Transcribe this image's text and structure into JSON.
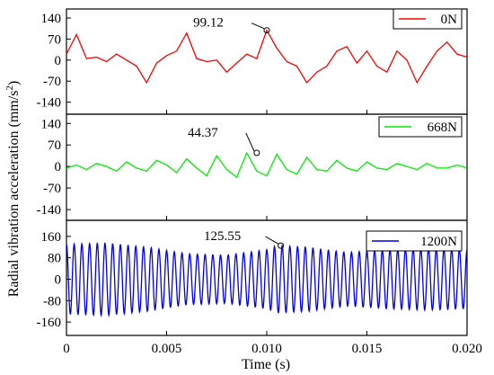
{
  "chart_data": [
    {
      "type": "line",
      "panel": "top",
      "series": [
        {
          "name": "0N",
          "color": "#ff0000"
        }
      ],
      "x": [
        0.0,
        0.0005,
        0.001,
        0.0015,
        0.002,
        0.0025,
        0.003,
        0.0035,
        0.004,
        0.0045,
        0.005,
        0.0055,
        0.006,
        0.0065,
        0.007,
        0.0075,
        0.008,
        0.0085,
        0.009,
        0.0095,
        0.01,
        0.0105,
        0.011,
        0.0115,
        0.012,
        0.0125,
        0.013,
        0.0135,
        0.014,
        0.0145,
        0.015,
        0.0155,
        0.016,
        0.0165,
        0.017,
        0.0175,
        0.018,
        0.0185,
        0.019,
        0.0195,
        0.02
      ],
      "values": [
        20,
        85,
        5,
        10,
        -5,
        20,
        0,
        -20,
        -75,
        -10,
        15,
        30,
        90,
        5,
        -5,
        0,
        -40,
        -10,
        20,
        5,
        99,
        40,
        -5,
        -20,
        -75,
        -40,
        -20,
        30,
        45,
        -10,
        30,
        -20,
        -40,
        30,
        0,
        -75,
        -20,
        30,
        60,
        20,
        10
      ],
      "ylim": [
        -180,
        170
      ],
      "yticks": [
        "140",
        "70",
        "0",
        "-70",
        "-140"
      ],
      "annotation": {
        "text": "99.12",
        "x": 0.01,
        "y": 99.12
      }
    },
    {
      "type": "line",
      "panel": "middle",
      "series": [
        {
          "name": "668N",
          "color": "#00ee00"
        }
      ],
      "x": [
        0.0,
        0.0005,
        0.001,
        0.0015,
        0.002,
        0.0025,
        0.003,
        0.0035,
        0.004,
        0.0045,
        0.005,
        0.0055,
        0.006,
        0.0065,
        0.007,
        0.0075,
        0.008,
        0.0085,
        0.009,
        0.0095,
        0.01,
        0.0105,
        0.011,
        0.0115,
        0.012,
        0.0125,
        0.013,
        0.0135,
        0.014,
        0.0145,
        0.015,
        0.0155,
        0.016,
        0.0165,
        0.017,
        0.0175,
        0.018,
        0.0185,
        0.019,
        0.0195,
        0.02
      ],
      "values": [
        -5,
        5,
        -10,
        10,
        0,
        -15,
        15,
        -5,
        -15,
        20,
        5,
        -20,
        25,
        -5,
        -30,
        35,
        -10,
        -35,
        44,
        -15,
        -30,
        40,
        -10,
        -25,
        30,
        -10,
        -15,
        20,
        -5,
        -15,
        15,
        -5,
        -10,
        10,
        0,
        -10,
        10,
        -5,
        -5,
        5,
        -5
      ],
      "ylim": [
        -175,
        170
      ],
      "yticks": [
        "140",
        "70",
        "0",
        "-70",
        "-140"
      ],
      "annotation": {
        "text": "44.37",
        "x": 0.0095,
        "y": 44.37
      }
    },
    {
      "type": "line",
      "panel": "bottom",
      "series": [
        {
          "name": "1200N",
          "color": "#0000ee"
        }
      ],
      "oscillation_frequency_hz": 2600,
      "envelope_x": [
        0.0,
        0.002,
        0.004,
        0.006,
        0.008,
        0.01,
        0.0105,
        0.012,
        0.014,
        0.016,
        0.018,
        0.02
      ],
      "envelope_values": [
        130,
        135,
        120,
        95,
        90,
        110,
        125.55,
        120,
        100,
        110,
        115,
        110
      ],
      "ylim": [
        -210,
        220
      ],
      "yticks": [
        "160",
        "80",
        "0",
        "-80",
        "-160"
      ],
      "annotation": {
        "text": "125.55",
        "x": 0.0107,
        "y": 125.55
      }
    }
  ],
  "x_axis": {
    "label": "Time (s)",
    "xlim": [
      0,
      0.02
    ],
    "ticks": [
      0,
      0.005,
      0.01,
      0.015,
      0.02
    ],
    "tick_labels": [
      "0",
      "0.005",
      "0.010",
      "0.015",
      "0.020"
    ]
  },
  "y_axis": {
    "label": "Radial vibration acceleration (mm/s",
    "label_sup": "2",
    "label_end": ")"
  }
}
